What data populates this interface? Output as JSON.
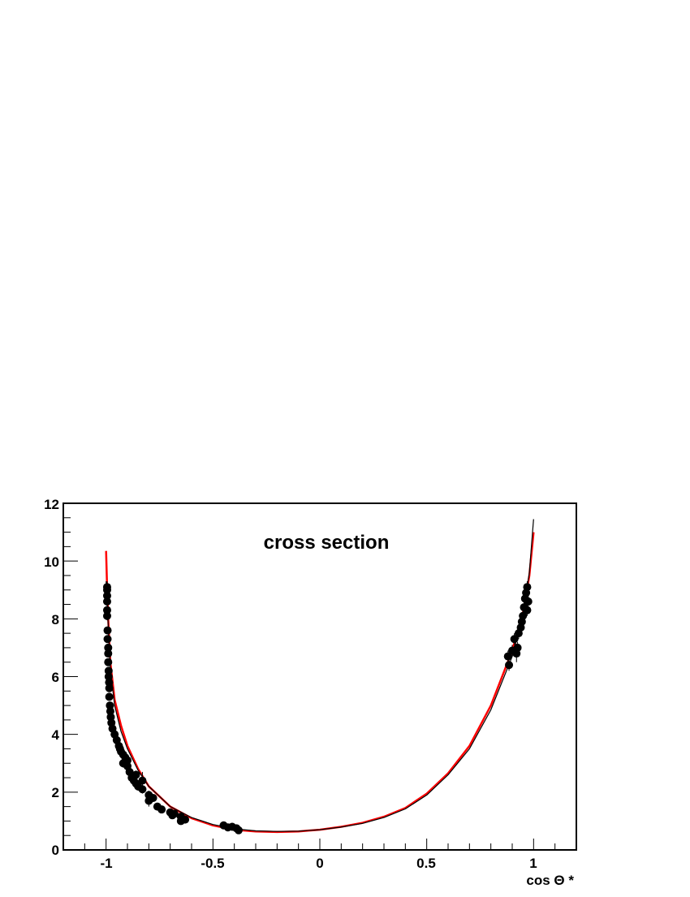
{
  "chart_data": {
    "type": "scatter",
    "title": "cross section",
    "xlabel": "cos Θ *",
    "ylabel": "",
    "xlim": [
      -1.2,
      1.2
    ],
    "ylim": [
      0,
      12
    ],
    "x_ticks": [
      "-1",
      "-0.5",
      "0",
      "0.5",
      "1"
    ],
    "y_ticks": [
      "0",
      "2",
      "4",
      "6",
      "8",
      "10",
      "12"
    ],
    "grid": false,
    "colors": {
      "data": "#000000",
      "curve_red": "#ff0000",
      "curve_black": "#000000"
    },
    "curves": [
      {
        "color": "#ff0000",
        "points": [
          [
            -1.0,
            10.35
          ],
          [
            -0.995,
            9.0
          ],
          [
            -0.99,
            8.0
          ],
          [
            -0.98,
            6.5
          ],
          [
            -0.96,
            5.2
          ],
          [
            -0.93,
            4.3
          ],
          [
            -0.9,
            3.6
          ],
          [
            -0.85,
            2.8
          ],
          [
            -0.8,
            2.2
          ],
          [
            -0.7,
            1.5
          ],
          [
            -0.6,
            1.1
          ],
          [
            -0.5,
            0.85
          ],
          [
            -0.4,
            0.7
          ],
          [
            -0.3,
            0.64
          ],
          [
            -0.2,
            0.62
          ],
          [
            -0.1,
            0.64
          ],
          [
            0,
            0.7
          ],
          [
            0.1,
            0.8
          ],
          [
            0.2,
            0.94
          ],
          [
            0.3,
            1.15
          ],
          [
            0.4,
            1.45
          ],
          [
            0.5,
            1.95
          ],
          [
            0.6,
            2.65
          ],
          [
            0.7,
            3.6
          ],
          [
            0.8,
            5.0
          ],
          [
            0.9,
            6.9
          ],
          [
            0.95,
            8.2
          ],
          [
            0.98,
            9.5
          ],
          [
            1.0,
            11.0
          ]
        ]
      },
      {
        "color": "#000000",
        "points": [
          [
            -1.0,
            9.3
          ],
          [
            -0.99,
            7.8
          ],
          [
            -0.98,
            6.3
          ],
          [
            -0.96,
            5.0
          ],
          [
            -0.93,
            4.1
          ],
          [
            -0.9,
            3.5
          ],
          [
            -0.85,
            2.75
          ],
          [
            -0.8,
            2.2
          ],
          [
            -0.7,
            1.5
          ],
          [
            -0.6,
            1.12
          ],
          [
            -0.5,
            0.88
          ],
          [
            -0.4,
            0.73
          ],
          [
            -0.3,
            0.66
          ],
          [
            -0.2,
            0.64
          ],
          [
            -0.1,
            0.65
          ],
          [
            0,
            0.7
          ],
          [
            0.1,
            0.79
          ],
          [
            0.2,
            0.92
          ],
          [
            0.3,
            1.12
          ],
          [
            0.4,
            1.42
          ],
          [
            0.5,
            1.9
          ],
          [
            0.6,
            2.6
          ],
          [
            0.7,
            3.5
          ],
          [
            0.8,
            4.85
          ],
          [
            0.9,
            6.7
          ],
          [
            0.95,
            8.1
          ],
          [
            0.98,
            9.6
          ],
          [
            1.0,
            11.45
          ]
        ]
      }
    ],
    "points": [
      {
        "x": -0.995,
        "y": 9.1,
        "err": 0.2
      },
      {
        "x": -0.995,
        "y": 9.0,
        "err": 0.15
      },
      {
        "x": -0.995,
        "y": 8.8,
        "err": 0.15
      },
      {
        "x": -0.995,
        "y": 8.6,
        "err": 0.15
      },
      {
        "x": -0.995,
        "y": 8.3,
        "err": 0.15
      },
      {
        "x": -0.995,
        "y": 8.1,
        "err": 0.15
      },
      {
        "x": -0.993,
        "y": 7.6,
        "err": 0.1
      },
      {
        "x": -0.993,
        "y": 7.3,
        "err": 0.1
      },
      {
        "x": -0.99,
        "y": 7.0,
        "err": 0.1
      },
      {
        "x": -0.99,
        "y": 6.8,
        "err": 0.1
      },
      {
        "x": -0.99,
        "y": 6.5,
        "err": 0.1
      },
      {
        "x": -0.988,
        "y": 6.2,
        "err": 0.1
      },
      {
        "x": -0.988,
        "y": 6.0,
        "err": 0.1
      },
      {
        "x": -0.986,
        "y": 5.8,
        "err": 0.1
      },
      {
        "x": -0.985,
        "y": 5.6,
        "err": 0.1
      },
      {
        "x": -0.985,
        "y": 5.3,
        "err": 0.1
      },
      {
        "x": -0.982,
        "y": 5.0,
        "err": 0.1
      },
      {
        "x": -0.98,
        "y": 4.8,
        "err": 0.1
      },
      {
        "x": -0.978,
        "y": 4.6,
        "err": 0.1
      },
      {
        "x": -0.975,
        "y": 4.4,
        "err": 0.1
      },
      {
        "x": -0.97,
        "y": 4.2,
        "err": 0.1
      },
      {
        "x": -0.96,
        "y": 4.0,
        "err": 0.1
      },
      {
        "x": -0.95,
        "y": 3.8,
        "err": 0.1
      },
      {
        "x": -0.94,
        "y": 3.6,
        "err": 0.15
      },
      {
        "x": -0.935,
        "y": 3.5,
        "err": 0.15
      },
      {
        "x": -0.93,
        "y": 3.4,
        "err": 0.15
      },
      {
        "x": -0.92,
        "y": 3.3,
        "err": 0.15
      },
      {
        "x": -0.92,
        "y": 3.0,
        "err": 0.15
      },
      {
        "x": -0.91,
        "y": 3.2,
        "err": 0.15
      },
      {
        "x": -0.9,
        "y": 3.1,
        "err": 0.15
      },
      {
        "x": -0.9,
        "y": 2.9,
        "err": 0.15
      },
      {
        "x": -0.89,
        "y": 2.7,
        "err": 0.15
      },
      {
        "x": -0.88,
        "y": 2.5,
        "err": 0.15
      },
      {
        "x": -0.87,
        "y": 2.4,
        "err": 0.15
      },
      {
        "x": -0.86,
        "y": 2.3,
        "err": 0.15
      },
      {
        "x": -0.86,
        "y": 2.6,
        "err": 0.15
      },
      {
        "x": -0.85,
        "y": 2.2,
        "err": 0.15
      },
      {
        "x": -0.83,
        "y": 2.1,
        "err": 0.15
      },
      {
        "x": -0.83,
        "y": 2.4,
        "err": 0.3
      },
      {
        "x": -0.8,
        "y": 1.9,
        "err": 0.15
      },
      {
        "x": -0.8,
        "y": 1.7,
        "err": 0.2
      },
      {
        "x": -0.78,
        "y": 1.8,
        "err": 0.1
      },
      {
        "x": -0.76,
        "y": 1.5,
        "err": 0.1
      },
      {
        "x": -0.74,
        "y": 1.4,
        "err": 0.1
      },
      {
        "x": -0.7,
        "y": 1.3,
        "err": 0.1
      },
      {
        "x": -0.69,
        "y": 1.2,
        "err": 0.1
      },
      {
        "x": -0.68,
        "y": 1.25,
        "err": 0.1
      },
      {
        "x": -0.65,
        "y": 1.15,
        "err": 0.1
      },
      {
        "x": -0.65,
        "y": 1.0,
        "err": 0.1
      },
      {
        "x": -0.63,
        "y": 1.05,
        "err": 0.1
      },
      {
        "x": -0.45,
        "y": 0.85,
        "err": 0.05
      },
      {
        "x": -0.43,
        "y": 0.78,
        "err": 0.05
      },
      {
        "x": -0.41,
        "y": 0.8,
        "err": 0.05
      },
      {
        "x": -0.39,
        "y": 0.75,
        "err": 0.05
      },
      {
        "x": -0.38,
        "y": 0.68,
        "err": 0.05
      },
      {
        "x": 0.88,
        "y": 6.7,
        "err": 0.2
      },
      {
        "x": 0.885,
        "y": 6.4,
        "err": 0.2
      },
      {
        "x": 0.9,
        "y": 6.9,
        "err": 0.2
      },
      {
        "x": 0.91,
        "y": 7.3,
        "err": 0.2
      },
      {
        "x": 0.92,
        "y": 6.8,
        "err": 0.3
      },
      {
        "x": 0.925,
        "y": 7.0,
        "err": 0.2
      },
      {
        "x": 0.93,
        "y": 7.5,
        "err": 0.2
      },
      {
        "x": 0.94,
        "y": 7.7,
        "err": 0.2
      },
      {
        "x": 0.945,
        "y": 7.9,
        "err": 0.2
      },
      {
        "x": 0.95,
        "y": 8.1,
        "err": 0.2
      },
      {
        "x": 0.955,
        "y": 8.4,
        "err": 0.2
      },
      {
        "x": 0.96,
        "y": 8.7,
        "err": 0.2
      },
      {
        "x": 0.965,
        "y": 8.9,
        "err": 0.2
      },
      {
        "x": 0.97,
        "y": 9.1,
        "err": 0.2
      },
      {
        "x": 0.975,
        "y": 8.6,
        "err": 0.2
      },
      {
        "x": 0.97,
        "y": 8.3,
        "err": 0.2
      }
    ]
  }
}
